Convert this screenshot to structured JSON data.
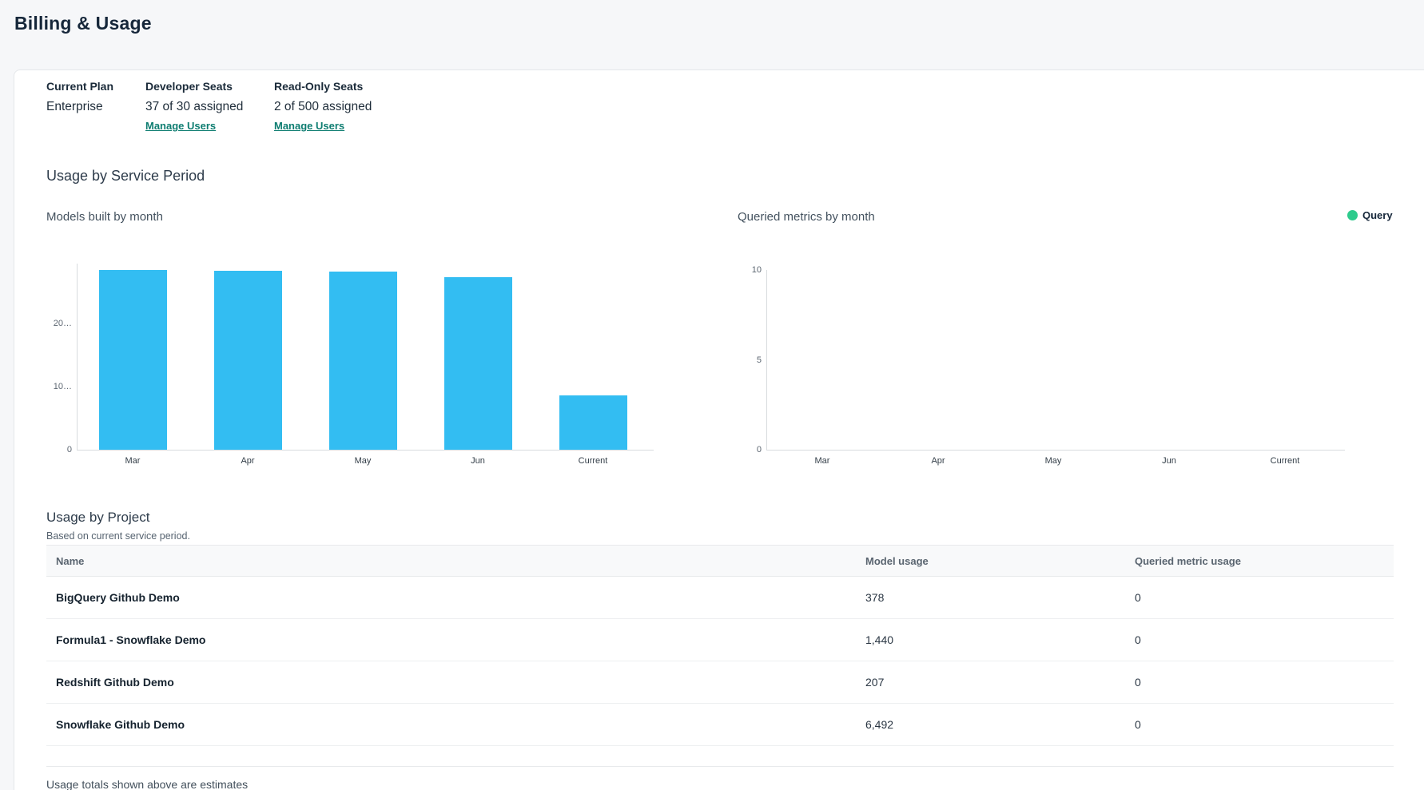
{
  "page": {
    "title": "Billing & Usage"
  },
  "plan": {
    "columns": [
      {
        "label": "Current Plan",
        "value": "Enterprise",
        "link": ""
      },
      {
        "label": "Developer Seats",
        "value": "37 of 30 assigned",
        "link": "Manage Users"
      },
      {
        "label": "Read-Only Seats",
        "value": "2 of 500 assigned",
        "link": "Manage Users"
      }
    ]
  },
  "service_period_section": {
    "title": "Usage by Service Period"
  },
  "chart_data": [
    {
      "type": "bar",
      "title": "Models built by month",
      "categories": [
        "Mar",
        "Apr",
        "May",
        "Jun",
        "Current"
      ],
      "values": [
        28500,
        28400,
        28200,
        27400,
        8600
      ],
      "xlabel": "",
      "ylabel": "",
      "ylim": [
        0,
        29500
      ],
      "yticks": [
        {
          "value": 0,
          "label": "0"
        },
        {
          "value": 10000,
          "label": "10…"
        },
        {
          "value": 20000,
          "label": "20…"
        }
      ],
      "bar_color": "#33bdf2",
      "grid": false,
      "legend": null
    },
    {
      "type": "bar",
      "title": "Queried metrics by month",
      "categories": [
        "Mar",
        "Apr",
        "May",
        "Jun",
        "Current"
      ],
      "values": [
        0,
        0,
        0,
        0,
        0
      ],
      "xlabel": "",
      "ylabel": "",
      "ylim": [
        0,
        10
      ],
      "yticks": [
        {
          "value": 0,
          "label": "0"
        },
        {
          "value": 5,
          "label": "5"
        },
        {
          "value": 10,
          "label": "10"
        }
      ],
      "bar_color": "#2ecb8d",
      "grid": false,
      "legend": {
        "label": "Query",
        "color": "#2ecb8d",
        "position": "top-right"
      }
    }
  ],
  "project_section": {
    "title": "Usage by Project",
    "subtitle": "Based on current service period.",
    "table": {
      "columns": [
        "Name",
        "Model usage",
        "Queried metric usage"
      ],
      "rows": [
        {
          "name": "BigQuery Github Demo",
          "model_usage": "378",
          "queried_metric_usage": "0"
        },
        {
          "name": "Formula1 - Snowflake Demo",
          "model_usage": "1,440",
          "queried_metric_usage": "0"
        },
        {
          "name": "Redshift Github Demo",
          "model_usage": "207",
          "queried_metric_usage": "0"
        },
        {
          "name": "Snowflake Github Demo",
          "model_usage": "6,492",
          "queried_metric_usage": "0"
        }
      ]
    },
    "footnote": "Usage totals shown above are estimates"
  },
  "colors": {
    "accent_cyan": "#33bdf2",
    "accent_green": "#2ecb8d",
    "link_teal": "#0e7d71",
    "heading_navy": "#16273a"
  }
}
